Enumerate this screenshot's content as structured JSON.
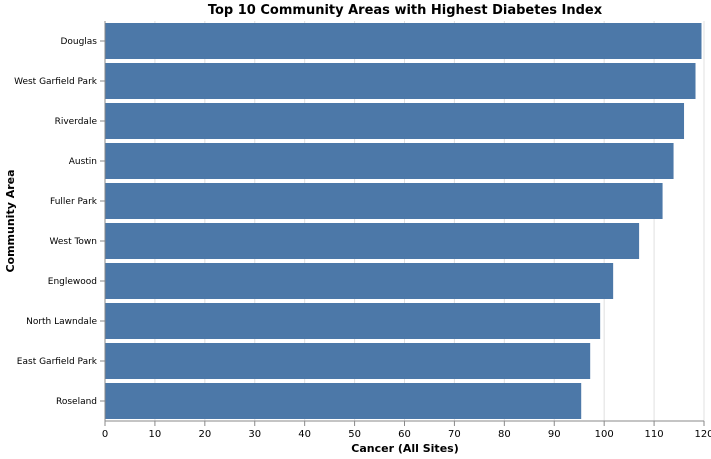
{
  "chart_data": {
    "type": "bar",
    "orientation": "horizontal",
    "title": "Top 10 Community Areas with Highest Diabetes Index",
    "xlabel": "Cancer (All Sites)",
    "ylabel": "Community Area",
    "xlim": [
      0,
      120
    ],
    "xticks": [
      0,
      10,
      20,
      30,
      40,
      50,
      60,
      70,
      80,
      90,
      100,
      110,
      120
    ],
    "grid": true,
    "bar_color": "#4c78a8",
    "categories": [
      "Douglas",
      "West Garfield Park",
      "Riverdale",
      "Austin",
      "Fuller Park",
      "West Town",
      "Englewood",
      "North Lawndale",
      "East Garfield Park",
      "Roseland"
    ],
    "values": [
      119.5,
      118.3,
      116.0,
      113.9,
      111.7,
      107.0,
      101.8,
      99.2,
      97.2,
      95.4
    ]
  }
}
